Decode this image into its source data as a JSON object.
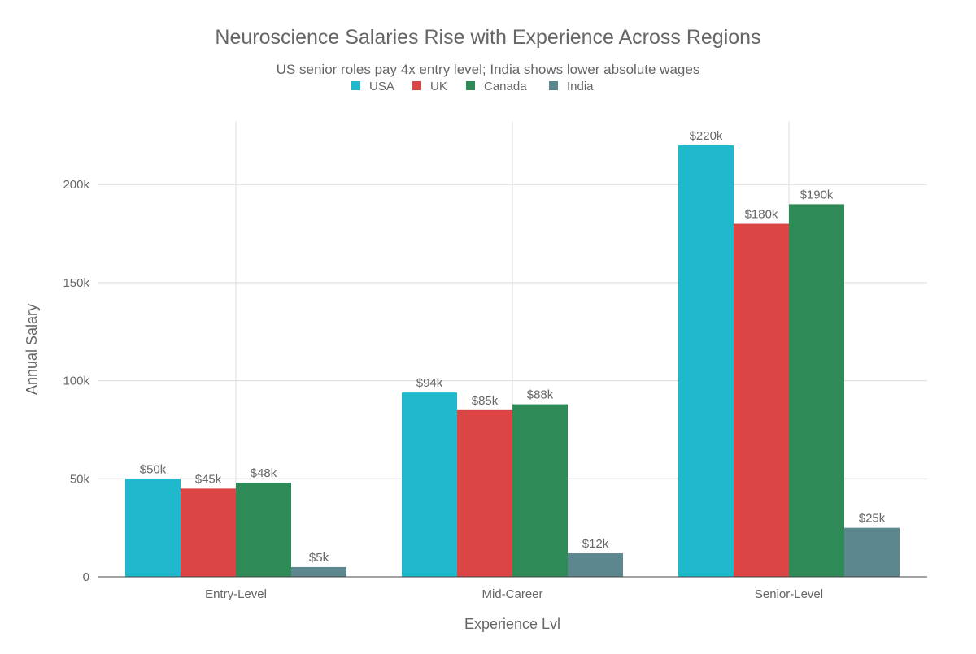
{
  "chart_data": {
    "type": "bar",
    "title": "Neuroscience Salaries Rise with Experience Across Regions",
    "subtitle": "US senior roles pay 4x entry level; India shows lower absolute wages",
    "xlabel": "Experience Lvl",
    "ylabel": "Annual Salary",
    "categories": [
      "Entry-Level",
      "Mid-Career",
      "Senior-Level"
    ],
    "ylim": [
      0,
      232000
    ],
    "yticks": [
      0,
      50000,
      100000,
      150000,
      200000
    ],
    "ytick_labels": [
      "0",
      "50k",
      "100k",
      "150k",
      "200k"
    ],
    "grid": true,
    "legend_position": "top-center",
    "series": [
      {
        "name": "USA",
        "color": "#1FB8CD",
        "values": [
          50000,
          94000,
          220000
        ],
        "labels": [
          "$50k",
          "$94k",
          "$220k"
        ]
      },
      {
        "name": "UK",
        "color": "#DB4545",
        "values": [
          45000,
          85000,
          180000
        ],
        "labels": [
          "$45k",
          "$85k",
          "$180k"
        ]
      },
      {
        "name": "Canada",
        "color": "#2E8B57",
        "values": [
          48000,
          88000,
          190000
        ],
        "labels": [
          "$48k",
          "$88k",
          "$190k"
        ]
      },
      {
        "name": "India",
        "color": "#5D878F",
        "values": [
          5000,
          12000,
          25000
        ],
        "labels": [
          "$5k",
          "$12k",
          "$25k"
        ]
      }
    ]
  }
}
